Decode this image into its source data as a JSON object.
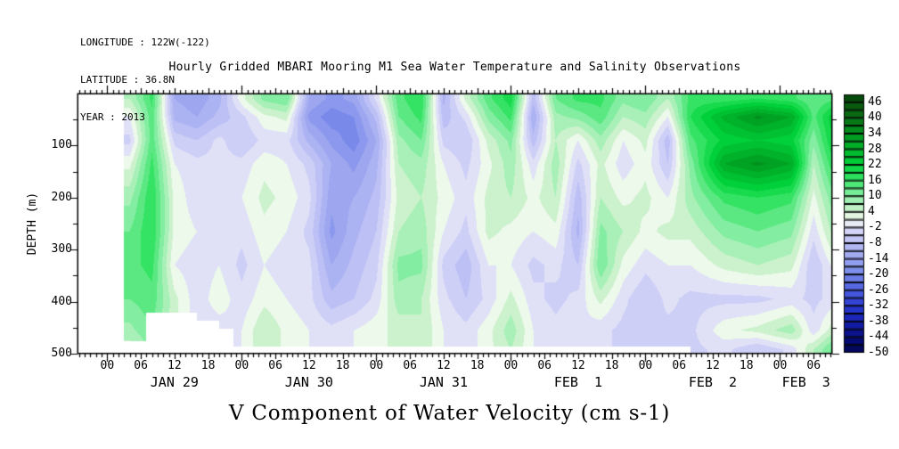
{
  "header": {
    "longitude": "LONGITUDE : 122W(-122)",
    "latitude": "LATITUDE : 36.8N",
    "year": "YEAR : 2013"
  },
  "title": "Hourly Gridded MBARI Mooring M1 Sea Water Temperature and Salinity Observations",
  "bottom_title": "V Component of Water Velocity (cm s-1)",
  "colors": {
    "background": "#ffffff",
    "axis": "#000000",
    "no_data": "#ffffff"
  },
  "chart_data": {
    "type": "heatmap",
    "title": "Hourly Gridded MBARI Mooring M1 Sea Water Temperature and Salinity Observations",
    "variable": "V Component of Water Velocity (cm s-1)",
    "ylabel": "DEPTH (m)",
    "y_ticks": [
      100,
      200,
      300,
      400,
      500
    ],
    "depth_range": [
      0,
      500
    ],
    "x_range_hours": [
      -5.3,
      129.3
    ],
    "hour_label_cycle": [
      "00",
      "06",
      "12",
      "18"
    ],
    "hour_label_step_h": 6,
    "days": [
      {
        "label": "JAN 29",
        "start_h": 0,
        "end_h": 24
      },
      {
        "label": "JAN 30",
        "start_h": 24,
        "end_h": 48
      },
      {
        "label": "JAN 31",
        "start_h": 48,
        "end_h": 72
      },
      {
        "label": "FEB  1",
        "start_h": 72,
        "end_h": 96
      },
      {
        "label": "FEB  2",
        "start_h": 96,
        "end_h": 120
      },
      {
        "label": "FEB  3",
        "start_h": 120,
        "end_h": 144
      }
    ],
    "colorbar": {
      "v_min": -50,
      "v_max": 49,
      "cell_step": 3,
      "tick_labels": [
        46,
        40,
        34,
        28,
        22,
        16,
        10,
        4,
        -2,
        -8,
        -14,
        -20,
        -26,
        -32,
        -38,
        -44,
        -50
      ]
    },
    "colormap_anchors": [
      [
        -50,
        "#020650"
      ],
      [
        -44,
        "#070d80"
      ],
      [
        -38,
        "#1520b0"
      ],
      [
        -32,
        "#2a3ad0"
      ],
      [
        -26,
        "#4c5fe0"
      ],
      [
        -20,
        "#7586e9"
      ],
      [
        -14,
        "#9aa4ef"
      ],
      [
        -8,
        "#b9bdf4"
      ],
      [
        -2,
        "#dcdcf8"
      ],
      [
        1,
        "#f2faf0"
      ],
      [
        4,
        "#d2f2d0"
      ],
      [
        10,
        "#8aeea6"
      ],
      [
        16,
        "#3ae468"
      ],
      [
        22,
        "#00d23a"
      ],
      [
        28,
        "#00b52a"
      ],
      [
        34,
        "#00941f"
      ],
      [
        40,
        "#0b7014"
      ],
      [
        49,
        "#06430a"
      ]
    ],
    "no_data": {
      "data_start_h": 3,
      "max_depth_by_time": [
        [
          3,
          476
        ],
        [
          7,
          421
        ],
        [
          16,
          437
        ],
        [
          20,
          452
        ],
        [
          22.5,
          486
        ],
        [
          104,
          500
        ]
      ]
    },
    "grid": {
      "depths": [
        10,
        45,
        90,
        135,
        200,
        265,
        330,
        395,
        455,
        492
      ],
      "columns": [
        {
          "t": 4,
          "v": [
            6,
            0,
            -4,
            2,
            8,
            12,
            14,
            12,
            8,
            4
          ]
        },
        {
          "t": 8,
          "v": [
            16,
            14,
            14,
            16,
            18,
            18,
            16,
            14,
            12,
            10
          ]
        },
        {
          "t": 12,
          "v": [
            -12,
            -10,
            -4,
            0,
            2,
            2,
            0,
            4,
            4,
            4
          ]
        },
        {
          "t": 16,
          "v": [
            -14,
            -12,
            -6,
            -2,
            -2,
            0,
            -2,
            -2,
            -2,
            -2
          ]
        },
        {
          "t": 20,
          "v": [
            -10,
            -8,
            -2,
            -2,
            0,
            -2,
            0,
            2,
            -2,
            -2
          ]
        },
        {
          "t": 24,
          "v": [
            2,
            -4,
            -6,
            -2,
            0,
            -2,
            -4,
            -2,
            0,
            0
          ]
        },
        {
          "t": 28,
          "v": [
            10,
            2,
            -2,
            2,
            4,
            2,
            0,
            2,
            6,
            6
          ]
        },
        {
          "t": 32,
          "v": [
            12,
            4,
            -2,
            0,
            2,
            0,
            -2,
            0,
            2,
            2
          ]
        },
        {
          "t": 36,
          "v": [
            -12,
            -16,
            -10,
            -4,
            -2,
            -4,
            -2,
            -2,
            0,
            0
          ]
        },
        {
          "t": 40,
          "v": [
            -16,
            -20,
            -16,
            -12,
            -14,
            -16,
            -12,
            -8,
            -2,
            -2
          ]
        },
        {
          "t": 44,
          "v": [
            -14,
            -18,
            -20,
            -16,
            -12,
            -10,
            -8,
            -6,
            0,
            0
          ]
        },
        {
          "t": 48,
          "v": [
            -2,
            -8,
            -12,
            -10,
            -8,
            -6,
            -4,
            -2,
            2,
            2
          ]
        },
        {
          "t": 52,
          "v": [
            14,
            12,
            8,
            6,
            4,
            6,
            10,
            8,
            4,
            4
          ]
        },
        {
          "t": 56,
          "v": [
            18,
            16,
            12,
            8,
            6,
            8,
            10,
            6,
            6,
            6
          ]
        },
        {
          "t": 60,
          "v": [
            -10,
            -8,
            -4,
            0,
            2,
            0,
            -4,
            -2,
            0,
            0
          ]
        },
        {
          "t": 64,
          "v": [
            4,
            -2,
            -6,
            -4,
            -2,
            -4,
            -8,
            -6,
            -2,
            -2
          ]
        },
        {
          "t": 68,
          "v": [
            14,
            10,
            4,
            2,
            4,
            4,
            0,
            -2,
            2,
            2
          ]
        },
        {
          "t": 72,
          "v": [
            20,
            16,
            10,
            8,
            6,
            2,
            0,
            4,
            8,
            6
          ]
        },
        {
          "t": 76,
          "v": [
            -8,
            -12,
            -8,
            -2,
            2,
            0,
            -4,
            -2,
            0,
            0
          ]
        },
        {
          "t": 80,
          "v": [
            12,
            8,
            6,
            8,
            6,
            2,
            -2,
            -4,
            -2,
            -2
          ]
        },
        {
          "t": 84,
          "v": [
            16,
            10,
            0,
            -4,
            -8,
            -10,
            -6,
            -2,
            0,
            0
          ]
        },
        {
          "t": 88,
          "v": [
            16,
            14,
            8,
            4,
            6,
            10,
            12,
            4,
            -2,
            -2
          ]
        },
        {
          "t": 92,
          "v": [
            10,
            6,
            0,
            -2,
            2,
            6,
            2,
            -2,
            -4,
            -4
          ]
        },
        {
          "t": 96,
          "v": [
            12,
            8,
            4,
            2,
            4,
            2,
            -2,
            -6,
            -4,
            -4
          ]
        },
        {
          "t": 100,
          "v": [
            6,
            0,
            -8,
            -6,
            0,
            4,
            0,
            -2,
            -4,
            -4
          ]
        },
        {
          "t": 104,
          "v": [
            16,
            18,
            14,
            10,
            8,
            4,
            0,
            -4,
            -4,
            -4
          ]
        },
        {
          "t": 110,
          "v": [
            16,
            28,
            22,
            30,
            16,
            10,
            4,
            -4,
            2,
            -2
          ]
        },
        {
          "t": 116,
          "v": [
            18,
            34,
            24,
            34,
            18,
            12,
            6,
            -4,
            4,
            -6
          ]
        },
        {
          "t": 122,
          "v": [
            16,
            30,
            22,
            30,
            16,
            10,
            4,
            -2,
            8,
            -2
          ]
        },
        {
          "t": 126,
          "v": [
            12,
            14,
            10,
            6,
            2,
            -2,
            -6,
            -4,
            -2,
            6
          ]
        },
        {
          "t": 129,
          "v": [
            14,
            22,
            20,
            16,
            10,
            6,
            0,
            -2,
            4,
            12
          ]
        }
      ]
    }
  }
}
